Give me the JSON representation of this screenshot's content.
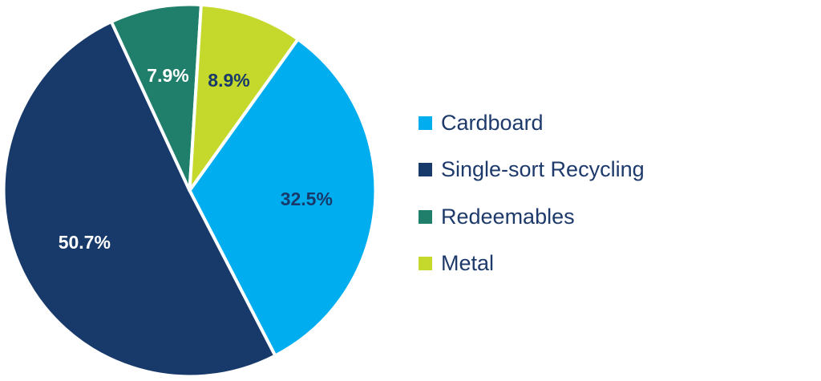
{
  "chart_data": {
    "type": "pie",
    "categories": [
      "Cardboard",
      "Single-sort Recycling",
      "Redeemables",
      "Metal"
    ],
    "values": [
      32.5,
      50.7,
      7.9,
      8.9
    ],
    "data_labels": [
      "32.5%",
      "50.7%",
      "7.9%",
      "8.9%"
    ],
    "colors": [
      "#00aeef",
      "#183a6b",
      "#1f7f6a",
      "#c5d92d"
    ],
    "label_colors": [
      "#183a6b",
      "#ffffff",
      "#ffffff",
      "#183a6b"
    ],
    "start_angle_deg": 35.6,
    "direction": "clockwise",
    "legend_position": "right"
  },
  "legend": {
    "items": [
      {
        "label": "Cardboard",
        "color": "#00aeef"
      },
      {
        "label": "Single-sort Recycling",
        "color": "#183a6b"
      },
      {
        "label": "Redeemables",
        "color": "#1f7f6a"
      },
      {
        "label": "Metal",
        "color": "#c5d92d"
      }
    ]
  }
}
